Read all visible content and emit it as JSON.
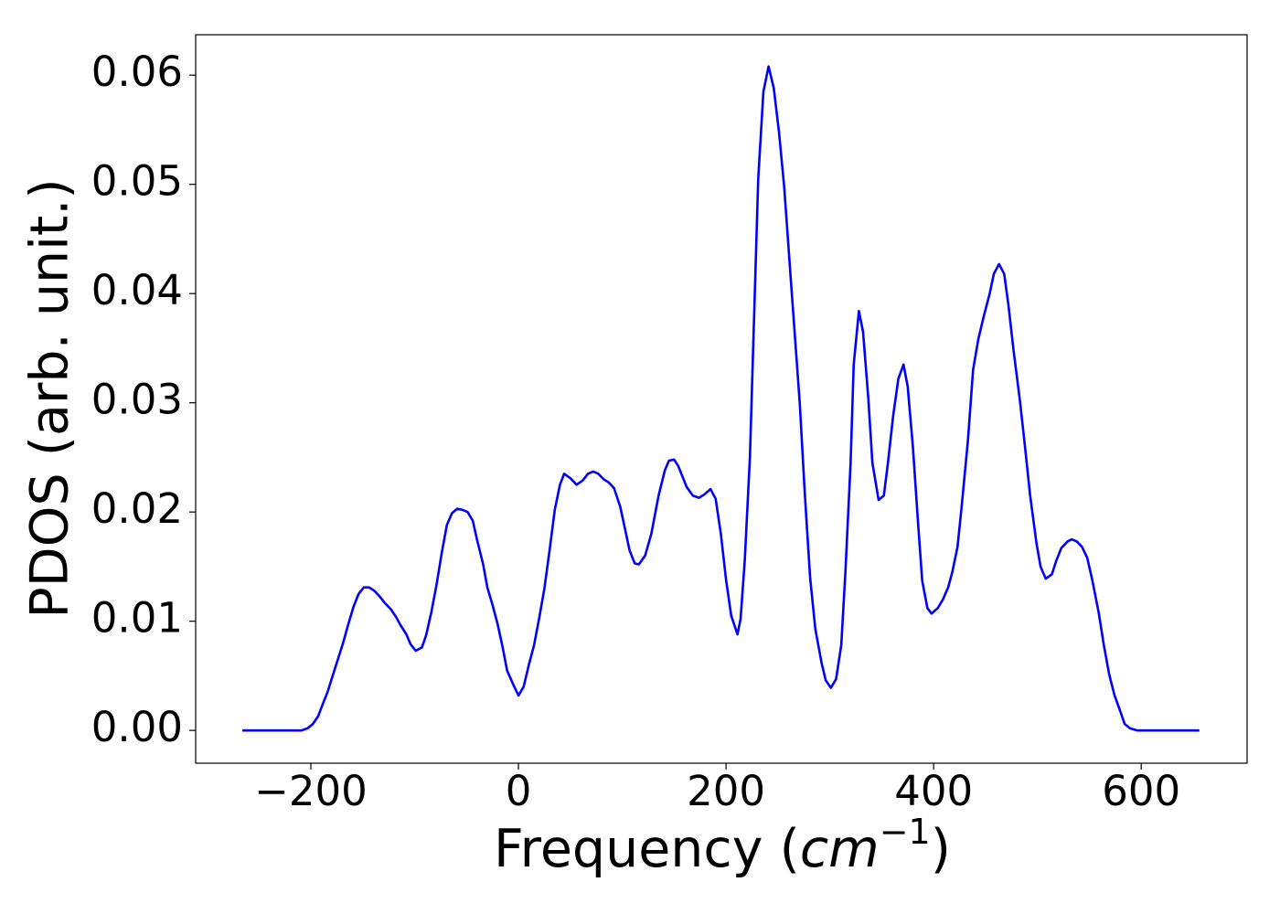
{
  "chart_data": {
    "type": "line",
    "xlabel": {
      "text": "Frequency (",
      "math": "cm",
      "sup": "−1",
      "end": ")"
    },
    "ylabel": "PDOS (arb. unit.)",
    "color": "#0000ff",
    "x": [
      -266,
      -209,
      -203,
      -198,
      -193,
      -189,
      -184,
      -179,
      -174,
      -169,
      -164,
      -159,
      -154,
      -149,
      -144,
      -139,
      -134,
      -129,
      -123,
      -118,
      -114,
      -108,
      -104,
      -99,
      -93,
      -89,
      -84,
      -79,
      -74,
      -69,
      -64,
      -59,
      -54,
      -49,
      -44,
      -40,
      -34,
      -30,
      -25,
      -20,
      -15,
      -11,
      -5,
      0,
      5,
      10,
      15,
      20,
      25,
      30,
      35,
      40,
      44,
      50,
      56,
      62,
      67,
      72,
      77,
      82,
      87,
      92,
      98,
      103,
      107,
      112,
      116,
      122,
      128,
      135,
      141,
      145,
      150,
      154,
      162,
      168,
      174,
      179,
      185,
      190,
      195,
      200,
      205,
      211,
      214,
      218,
      223,
      231,
      236,
      241,
      246,
      251,
      256,
      263,
      271,
      276,
      281,
      286,
      292,
      296,
      301,
      306,
      311,
      315,
      320,
      323,
      328,
      332,
      337,
      341,
      347,
      352,
      356,
      361,
      366,
      371,
      375,
      380,
      385,
      389,
      394,
      398,
      404,
      409,
      414,
      418,
      423,
      427,
      433,
      438,
      443,
      448,
      454,
      458,
      463,
      468,
      472,
      477,
      483,
      488,
      493,
      499,
      503,
      508,
      514,
      518,
      523,
      529,
      533,
      538,
      543,
      548,
      553,
      559,
      564,
      569,
      574,
      580,
      584,
      589,
      596,
      656
    ],
    "values": [
      0,
      0,
      0.0002,
      0.0006,
      0.0013,
      0.0023,
      0.0035,
      0.005,
      0.0065,
      0.008,
      0.0097,
      0.0113,
      0.0125,
      0.0131,
      0.0131,
      0.0128,
      0.0123,
      0.0117,
      0.0111,
      0.0104,
      0.0097,
      0.0088,
      0.0079,
      0.0073,
      0.0076,
      0.0087,
      0.0108,
      0.0133,
      0.0162,
      0.0188,
      0.0199,
      0.0203,
      0.0202,
      0.02,
      0.0192,
      0.0175,
      0.0152,
      0.0131,
      0.0115,
      0.0097,
      0.0075,
      0.0055,
      0.0042,
      0.0032,
      0.004,
      0.006,
      0.0078,
      0.0103,
      0.013,
      0.0165,
      0.0202,
      0.0225,
      0.0235,
      0.0231,
      0.0225,
      0.0229,
      0.0235,
      0.0237,
      0.0235,
      0.023,
      0.0227,
      0.0222,
      0.0205,
      0.0183,
      0.0165,
      0.0153,
      0.0152,
      0.016,
      0.018,
      0.0215,
      0.0238,
      0.0247,
      0.0248,
      0.0242,
      0.0223,
      0.0215,
      0.0213,
      0.0216,
      0.0221,
      0.0212,
      0.018,
      0.0138,
      0.0105,
      0.0088,
      0.0102,
      0.0155,
      0.025,
      0.0505,
      0.0585,
      0.0608,
      0.0588,
      0.0548,
      0.0498,
      0.0405,
      0.03,
      0.0215,
      0.014,
      0.0093,
      0.0062,
      0.0046,
      0.0039,
      0.0047,
      0.0078,
      0.0145,
      0.0245,
      0.0335,
      0.0384,
      0.0365,
      0.0305,
      0.0245,
      0.0211,
      0.0215,
      0.0245,
      0.0288,
      0.0322,
      0.0335,
      0.0315,
      0.026,
      0.019,
      0.0137,
      0.0112,
      0.0107,
      0.0112,
      0.012,
      0.0131,
      0.0145,
      0.0168,
      0.0205,
      0.0265,
      0.033,
      0.0358,
      0.0378,
      0.04,
      0.0418,
      0.0427,
      0.0418,
      0.039,
      0.0348,
      0.0303,
      0.026,
      0.0215,
      0.0172,
      0.015,
      0.0139,
      0.0143,
      0.0155,
      0.0167,
      0.0173,
      0.0175,
      0.0173,
      0.0168,
      0.0158,
      0.0137,
      0.0108,
      0.0078,
      0.0052,
      0.0033,
      0.0017,
      0.0006,
      0.0002,
      0,
      0
    ],
    "xlim": [
      -311,
      702
    ],
    "ylim": [
      -0.003,
      0.0637
    ],
    "xticks": [
      {
        "value": -200,
        "label": "−200"
      },
      0,
      200,
      400,
      600
    ],
    "yticks": [
      {
        "value": 0,
        "label": "0.00"
      },
      0.01,
      0.02,
      0.03,
      0.04,
      0.05,
      0.06
    ]
  }
}
